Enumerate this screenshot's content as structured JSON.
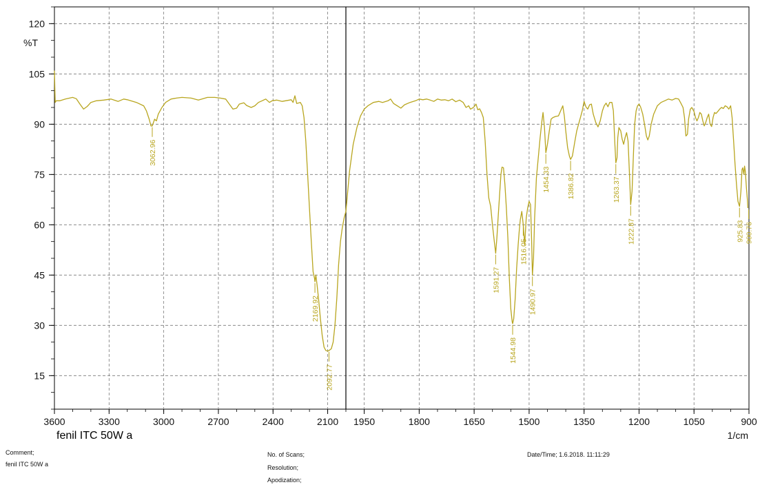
{
  "chart_data": {
    "type": "line",
    "title": "",
    "sample_label": "fenil ITC 50W a",
    "ylabel": "%T",
    "xlabel": "1/cm",
    "x_axis_reversed": true,
    "x_scale_note": "compressed scale between 3600 and 2000, expanded below 2000",
    "xlim": [
      3600,
      900
    ],
    "ylim": [
      5,
      125
    ],
    "grid": true,
    "line_color": "#b8a51e",
    "x_ticks_left": [
      3600,
      3300,
      3000,
      2700,
      2400,
      2100
    ],
    "x_ticks_right": [
      1950,
      1800,
      1650,
      1500,
      1350,
      1200,
      1050,
      900
    ],
    "y_ticks": [
      15,
      30,
      45,
      60,
      75,
      90,
      105,
      120
    ],
    "series": [
      {
        "values": [
          [
            3600,
            106
          ],
          [
            3596,
            96.5
          ],
          [
            3590,
            97
          ],
          [
            3570,
            97
          ],
          [
            3540,
            97.5
          ],
          [
            3500,
            98
          ],
          [
            3480,
            97.6
          ],
          [
            3460,
            96
          ],
          [
            3440,
            94.5
          ],
          [
            3420,
            95.3
          ],
          [
            3400,
            96.5
          ],
          [
            3370,
            97
          ],
          [
            3330,
            97.2
          ],
          [
            3290,
            97.5
          ],
          [
            3250,
            96.8
          ],
          [
            3220,
            97.5
          ],
          [
            3200,
            97.3
          ],
          [
            3150,
            96.5
          ],
          [
            3110,
            95.5
          ],
          [
            3095,
            94
          ],
          [
            3080,
            91.5
          ],
          [
            3070,
            89.5
          ],
          [
            3062.96,
            89.5
          ],
          [
            3050,
            91.5
          ],
          [
            3040,
            91
          ],
          [
            3030,
            93
          ],
          [
            3010,
            95
          ],
          [
            2990,
            96.5
          ],
          [
            2960,
            97.5
          ],
          [
            2930,
            97.8
          ],
          [
            2900,
            98
          ],
          [
            2850,
            97.8
          ],
          [
            2810,
            97.2
          ],
          [
            2790,
            97.5
          ],
          [
            2760,
            98
          ],
          [
            2720,
            98
          ],
          [
            2690,
            97.8
          ],
          [
            2660,
            97.5
          ],
          [
            2640,
            96
          ],
          [
            2620,
            94.5
          ],
          [
            2600,
            94.8
          ],
          [
            2585,
            96
          ],
          [
            2560,
            96.4
          ],
          [
            2545,
            95.6
          ],
          [
            2520,
            95
          ],
          [
            2500,
            95.5
          ],
          [
            2480,
            96.5
          ],
          [
            2460,
            97
          ],
          [
            2440,
            97.5
          ],
          [
            2420,
            96.5
          ],
          [
            2405,
            97
          ],
          [
            2380,
            97.2
          ],
          [
            2350,
            96.8
          ],
          [
            2300,
            97.3
          ],
          [
            2290,
            96.5
          ],
          [
            2280,
            98.5
          ],
          [
            2270,
            96.2
          ],
          [
            2250,
            96.5
          ],
          [
            2240,
            95.5
          ],
          [
            2230,
            92
          ],
          [
            2220,
            85
          ],
          [
            2210,
            75
          ],
          [
            2200,
            65
          ],
          [
            2190,
            55
          ],
          [
            2180,
            46
          ],
          [
            2172,
            44
          ],
          [
            2169.92,
            43
          ],
          [
            2165,
            45
          ],
          [
            2158,
            42
          ],
          [
            2150,
            38
          ],
          [
            2140,
            32
          ],
          [
            2130,
            27
          ],
          [
            2120,
            23.5
          ],
          [
            2110,
            22.5
          ],
          [
            2100,
            22.3
          ],
          [
            2092.77,
            22.5
          ],
          [
            2080,
            23
          ],
          [
            2070,
            25
          ],
          [
            2060,
            30
          ],
          [
            2050,
            38
          ],
          [
            2040,
            48
          ],
          [
            2030,
            55
          ],
          [
            2020,
            59
          ],
          [
            2010,
            62
          ],
          [
            2000,
            64
          ],
          [
            1990,
            76
          ],
          [
            1980,
            84
          ],
          [
            1970,
            89
          ],
          [
            1960,
            92.5
          ],
          [
            1950,
            94.5
          ],
          [
            1940,
            95.5
          ],
          [
            1925,
            96.5
          ],
          [
            1910,
            96.8
          ],
          [
            1900,
            96.5
          ],
          [
            1885,
            97
          ],
          [
            1878,
            97.5
          ],
          [
            1870,
            96.2
          ],
          [
            1860,
            95.5
          ],
          [
            1850,
            94.8
          ],
          [
            1840,
            95.8
          ],
          [
            1825,
            96.5
          ],
          [
            1810,
            97
          ],
          [
            1800,
            97.5
          ],
          [
            1790,
            97.3
          ],
          [
            1780,
            97.5
          ],
          [
            1770,
            97.2
          ],
          [
            1760,
            96.8
          ],
          [
            1750,
            97.5
          ],
          [
            1740,
            97.2
          ],
          [
            1730,
            97.3
          ],
          [
            1720,
            97
          ],
          [
            1710,
            97.5
          ],
          [
            1700,
            96.7
          ],
          [
            1690,
            97.2
          ],
          [
            1680,
            96.5
          ],
          [
            1672,
            95
          ],
          [
            1665,
            95.5
          ],
          [
            1660,
            94.5
          ],
          [
            1655,
            94.8
          ],
          [
            1650,
            95.2
          ],
          [
            1645,
            96
          ],
          [
            1640,
            94.3
          ],
          [
            1635,
            94.6
          ],
          [
            1630,
            93.5
          ],
          [
            1625,
            92
          ],
          [
            1620,
            85
          ],
          [
            1615,
            75
          ],
          [
            1610,
            68
          ],
          [
            1605,
            65.5
          ],
          [
            1600,
            60
          ],
          [
            1595,
            55
          ],
          [
            1591.27,
            51.5
          ],
          [
            1588,
            56
          ],
          [
            1584,
            63
          ],
          [
            1580,
            70
          ],
          [
            1577,
            75
          ],
          [
            1574,
            77.2
          ],
          [
            1570,
            77
          ],
          [
            1566,
            72
          ],
          [
            1562,
            65
          ],
          [
            1558,
            56
          ],
          [
            1554,
            44
          ],
          [
            1550,
            35
          ],
          [
            1546,
            31
          ],
          [
            1544.98,
            30.5
          ],
          [
            1542,
            32
          ],
          [
            1538,
            38
          ],
          [
            1534,
            47
          ],
          [
            1530,
            54
          ],
          [
            1527,
            58
          ],
          [
            1524,
            61.5
          ],
          [
            1520,
            64
          ],
          [
            1516.05,
            60
          ],
          [
            1512,
            54
          ],
          [
            1508,
            62
          ],
          [
            1504,
            65
          ],
          [
            1500,
            67
          ],
          [
            1496,
            66
          ],
          [
            1493,
            55
          ],
          [
            1490.97,
            45
          ],
          [
            1488,
            50
          ],
          [
            1485,
            62
          ],
          [
            1480,
            74
          ],
          [
            1475,
            80
          ],
          [
            1470,
            86
          ],
          [
            1465,
            91
          ],
          [
            1462,
            93.5
          ],
          [
            1458,
            89
          ],
          [
            1454.33,
            81.5
          ],
          [
            1450,
            84
          ],
          [
            1445,
            88
          ],
          [
            1440,
            91.5
          ],
          [
            1435,
            92
          ],
          [
            1428,
            92.3
          ],
          [
            1420,
            92.5
          ],
          [
            1412,
            94.5
          ],
          [
            1408,
            95.5
          ],
          [
            1404,
            92.5
          ],
          [
            1400,
            88
          ],
          [
            1395,
            83
          ],
          [
            1390,
            80.5
          ],
          [
            1386.82,
            79.5
          ],
          [
            1382,
            80.5
          ],
          [
            1375,
            85
          ],
          [
            1370,
            88
          ],
          [
            1365,
            90
          ],
          [
            1360,
            92
          ],
          [
            1355,
            94
          ],
          [
            1350,
            96.8
          ],
          [
            1345,
            95.2
          ],
          [
            1340,
            94.5
          ],
          [
            1335,
            95.8
          ],
          [
            1330,
            96
          ],
          [
            1325,
            93
          ],
          [
            1318,
            90.5
          ],
          [
            1312,
            89.2
          ],
          [
            1306,
            91
          ],
          [
            1300,
            94
          ],
          [
            1295,
            95.5
          ],
          [
            1290,
            96.3
          ],
          [
            1285,
            95.2
          ],
          [
            1280,
            96.5
          ],
          [
            1274,
            96.5
          ],
          [
            1270,
            94
          ],
          [
            1266,
            84
          ],
          [
            1263.37,
            78.5
          ],
          [
            1260,
            80
          ],
          [
            1258,
            86
          ],
          [
            1255,
            89
          ],
          [
            1250,
            88
          ],
          [
            1246,
            85.5
          ],
          [
            1242,
            84
          ],
          [
            1238,
            86
          ],
          [
            1234,
            87.5
          ],
          [
            1230,
            85
          ],
          [
            1226,
            75
          ],
          [
            1222.87,
            66
          ],
          [
            1219,
            70
          ],
          [
            1215,
            82
          ],
          [
            1212,
            90
          ],
          [
            1208,
            94
          ],
          [
            1204,
            95.5
          ],
          [
            1200,
            96
          ],
          [
            1196,
            95.2
          ],
          [
            1190,
            93
          ],
          [
            1185,
            90
          ],
          [
            1180,
            86.5
          ],
          [
            1176,
            85.3
          ],
          [
            1172,
            86.5
          ],
          [
            1167,
            90
          ],
          [
            1160,
            93
          ],
          [
            1150,
            95.5
          ],
          [
            1140,
            96.5
          ],
          [
            1130,
            97
          ],
          [
            1120,
            97.5
          ],
          [
            1110,
            97.2
          ],
          [
            1100,
            97.7
          ],
          [
            1092,
            97.5
          ],
          [
            1086,
            96.3
          ],
          [
            1080,
            95
          ],
          [
            1076,
            92
          ],
          [
            1072,
            86.5
          ],
          [
            1068,
            87
          ],
          [
            1065,
            91.5
          ],
          [
            1060,
            94.5
          ],
          [
            1056,
            95
          ],
          [
            1050,
            93.8
          ],
          [
            1046,
            92
          ],
          [
            1042,
            91
          ],
          [
            1038,
            92
          ],
          [
            1034,
            93.5
          ],
          [
            1030,
            93
          ],
          [
            1026,
            91
          ],
          [
            1022,
            89.5
          ],
          [
            1018,
            90.5
          ],
          [
            1014,
            92
          ],
          [
            1010,
            93
          ],
          [
            1006,
            90
          ],
          [
            1002,
            89.3
          ],
          [
            998,
            92
          ],
          [
            994,
            93.5
          ],
          [
            990,
            93.2
          ],
          [
            985,
            93.8
          ],
          [
            980,
            94.5
          ],
          [
            975,
            95
          ],
          [
            970,
            94.7
          ],
          [
            965,
            95.5
          ],
          [
            960,
            95.2
          ],
          [
            955,
            94.5
          ],
          [
            950,
            95.5
          ],
          [
            946,
            92
          ],
          [
            942,
            85
          ],
          [
            938,
            78
          ],
          [
            934,
            72
          ],
          [
            930,
            67
          ],
          [
            925.83,
            65.5
          ],
          [
            922,
            70
          ],
          [
            919,
            76.5
          ],
          [
            917,
            77
          ],
          [
            914,
            75
          ],
          [
            912,
            77.5
          ],
          [
            910,
            76
          ],
          [
            907,
            71
          ],
          [
            904,
            67
          ],
          [
            903,
            65
          ]
        ]
      }
    ],
    "peak_labels": [
      "3062.96",
      "2169.92",
      "2092.77",
      "1591.27",
      "1544.98",
      "1516.05",
      "1490.97",
      "1454.33",
      "1386.82",
      "1263.37",
      "1222.87",
      "925.83",
      "900.76"
    ]
  },
  "footer": {
    "comment_label": "Comment;",
    "comment_value": "fenil ITC 50W a",
    "scans_label": "No. of Scans;",
    "resolution_label": "Resolution;",
    "apodization_label": "Apodization;",
    "datetime_label": "Date/Time; 1.6.2018. 11:11:29"
  }
}
